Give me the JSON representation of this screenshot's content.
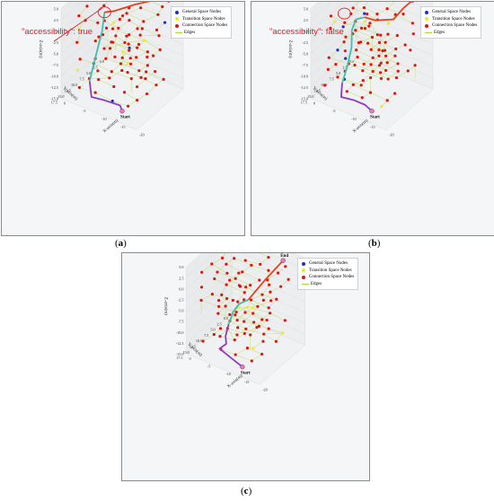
{
  "panels": [
    {
      "id": "a",
      "label": "a",
      "annotation": "\"accessibility\": true",
      "colors": {
        "route_primary": "#e8401b",
        "route_mid": "#3bbfb3",
        "route_start": "#8a3dc4"
      }
    },
    {
      "id": "b",
      "label": "b",
      "annotation": "\"accessibility\": false",
      "colors": {
        "route_primary": "#e8401b",
        "route_mid": "#3bbfb3",
        "route_start": "#8a3dc4"
      }
    },
    {
      "id": "c",
      "label": "c",
      "annotation": "",
      "colors": {
        "route_primary": "#e8401b",
        "route_mid": "#3bbfb3",
        "route_start": "#8a3dc4"
      }
    }
  ],
  "legend": {
    "items": [
      {
        "label": "General Space Nodes",
        "color": "#1a2fc8",
        "kind": "dot"
      },
      {
        "label": "Transition Space Nodes",
        "color": "#f2ea1e",
        "kind": "dot"
      },
      {
        "label": "Connection Space Nodes",
        "color": "#e0140e",
        "kind": "dot"
      },
      {
        "label": "Edges",
        "color": "#a6dc3c",
        "kind": "line"
      }
    ]
  },
  "markers": {
    "end": "End",
    "start": "Start"
  },
  "axes": {
    "z_label": "Z-axis(m)",
    "y_label": "Y-axis(m)",
    "x_label": "X-axis(m)",
    "z_ticks": [
      "5.0",
      "2.5",
      "0.0",
      "-2.5",
      "-5.0",
      "-7.5",
      "-10.0",
      "-12.5",
      "-15.0"
    ],
    "y_ticks": [
      "0.0",
      "2.5",
      "5.0",
      "7.5",
      "10.0",
      "12.5",
      "15.0",
      "17.5"
    ],
    "x_ticks": [
      "-20",
      "-15",
      "-10",
      "-5",
      "0"
    ]
  },
  "colors": {
    "node": "#e0140e",
    "general_node": "#1a2fc8",
    "transition_node": "#f2ea1e",
    "edge": "#c8e28a",
    "annotation": "#e01b24",
    "grid": "#dcdcdc"
  }
}
